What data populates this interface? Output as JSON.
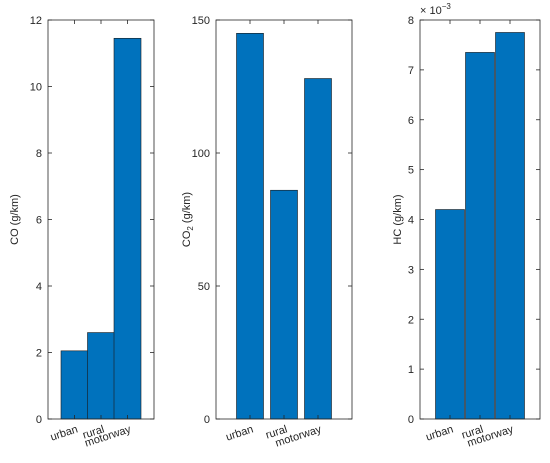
{
  "chart_data": [
    {
      "type": "bar",
      "categories": [
        "urban",
        "rural",
        "motorway"
      ],
      "values": [
        2.05,
        2.6,
        11.45
      ],
      "ylabel_main": "CO",
      "ylabel_sub": "",
      "ylabel_rest": " (g/km)",
      "ylim": [
        0,
        12
      ],
      "yticks": [
        0,
        2,
        4,
        6,
        8,
        10,
        12
      ],
      "exponent_label": ""
    },
    {
      "type": "bar",
      "categories": [
        "urban",
        "rural",
        "motorway"
      ],
      "values": [
        145,
        86,
        128
      ],
      "ylabel_main": "CO",
      "ylabel_sub": "2",
      "ylabel_rest": " (g/km)",
      "ylim": [
        0,
        150
      ],
      "yticks": [
        0,
        50,
        100,
        150
      ],
      "exponent_label": ""
    },
    {
      "type": "bar",
      "categories": [
        "urban",
        "rural",
        "motorway"
      ],
      "values": [
        4.2,
        7.35,
        7.75
      ],
      "ylabel_main": "HC",
      "ylabel_sub": "",
      "ylabel_rest": " (g/km)",
      "ylim": [
        0,
        8
      ],
      "yticks": [
        0,
        1,
        2,
        3,
        4,
        5,
        6,
        7,
        8
      ],
      "exponent_label": "× 10",
      "exponent_power": "−3"
    }
  ],
  "colors": {
    "bar": "#0072BD",
    "axis": "#262626"
  }
}
